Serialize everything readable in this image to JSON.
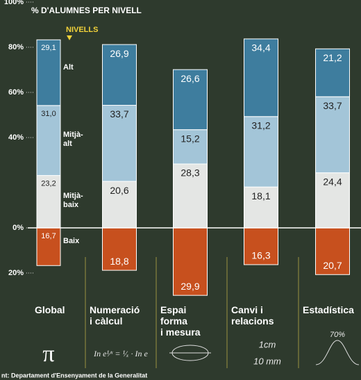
{
  "chart_data": {
    "type": "stacked_bar",
    "title": "% D'ALUMNES PER NIVELL",
    "legend_title": "NIVELLS",
    "source": "nt: Departament d'Ensenyament de la Generalitat",
    "categories": [
      "Global",
      "Numeració\ni càlcul",
      "Espai\nforma\ni mesura",
      "Canvi i\nrelacions",
      "Estadística"
    ],
    "series": [
      {
        "name": "Alt",
        "color": "#3e7d9e",
        "values": [
          29.1,
          26.9,
          26.6,
          34.4,
          21.2
        ],
        "value_labels": [
          "29,1",
          "26,9",
          "26,6",
          "34,4",
          "21,2"
        ]
      },
      {
        "name": "Mitjà-alt",
        "color": "#a3c5d8",
        "values": [
          31.0,
          33.7,
          15.2,
          31.2,
          33.7
        ],
        "value_labels": [
          "31,0",
          "33,7",
          "15,2",
          "31,2",
          "33,7"
        ]
      },
      {
        "name": "Mitjà-baix",
        "color": "#e4e6e4",
        "values": [
          23.2,
          20.6,
          28.3,
          18.1,
          24.4
        ],
        "value_labels": [
          "23,2",
          "20,6",
          "28,3",
          "18,1",
          "24,4"
        ]
      },
      {
        "name": "Baix",
        "color": "#c7501e",
        "values": [
          -16.7,
          -18.8,
          -29.9,
          -16.3,
          -20.7
        ],
        "value_labels": [
          "16,7",
          "18,8",
          "29,9",
          "16,3",
          "20,7"
        ]
      }
    ],
    "ylim": [
      -30,
      110
    ],
    "yticks": [
      {
        "value": -20,
        "label": "20%"
      },
      {
        "value": 0,
        "label": "0%"
      },
      {
        "value": 40,
        "label": "40%"
      },
      {
        "value": 60,
        "label": "60%"
      },
      {
        "value": 80,
        "label": "80%"
      },
      {
        "value": 100,
        "label": "100%"
      }
    ],
    "decorations": [
      "π",
      "In e¹⁄ˣ = ¹⁄ₓ · In e",
      "1cm",
      "10 mm",
      "70%"
    ]
  }
}
